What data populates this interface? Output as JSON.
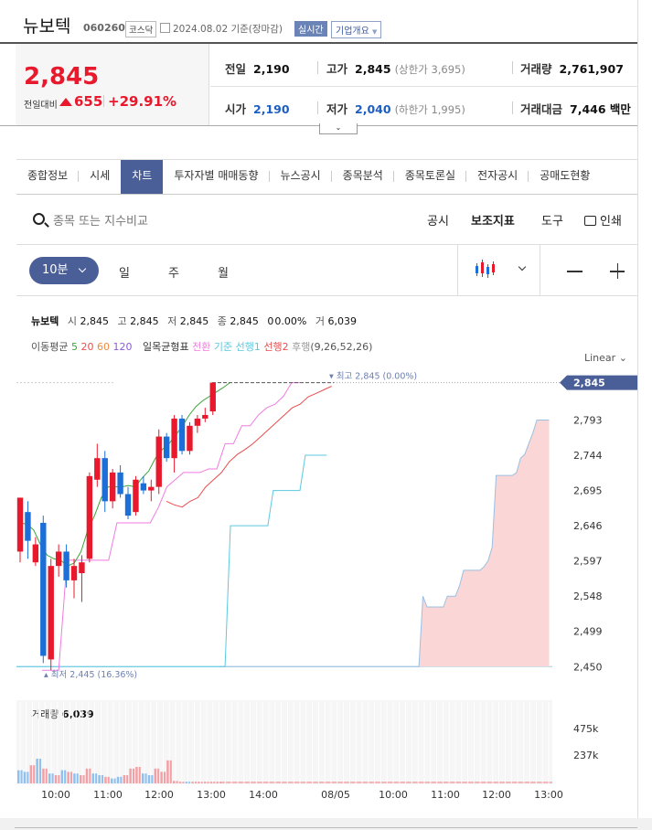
{
  "header": {
    "name": "뉴보텍",
    "code": "060260",
    "market": "코스닥",
    "date_text": "2024.08.02 기준(장마감)",
    "realtime": "실시간",
    "overview": "기업개요"
  },
  "price": {
    "current": "2,845",
    "compare_label": "전일대비",
    "change": "655",
    "change_pct": "+29.91%"
  },
  "stats": {
    "prev_label": "전일",
    "prev": "2,190",
    "high_label": "고가",
    "high": "2,845",
    "upper_limit": "(상한가 3,695)",
    "volume_label": "거래량",
    "volume": "2,761,907",
    "open_label": "시가",
    "open": "2,190",
    "low_label": "저가",
    "low": "2,040",
    "lower_limit": "(하한가 1,995)",
    "amount_label": "거래대금",
    "amount": "7,446 백만"
  },
  "tabs": [
    "종합정보",
    "시세",
    "차트",
    "투자자별 매매동향",
    "뉴스공시",
    "종목분석",
    "종목토론실",
    "전자공시",
    "공매도현황"
  ],
  "active_tab": "차트",
  "toolbar": {
    "search_placeholder": "종목 또는 지수비교",
    "disclosure": "공시",
    "indicator": "보조지표",
    "tools": "도구",
    "print": "인쇄"
  },
  "periods": {
    "selected": "10분",
    "day": "일",
    "week": "주",
    "month": "월"
  },
  "chart_info": {
    "name": "뉴보텍",
    "open_k": "시",
    "open": "2,845",
    "high_k": "고",
    "high": "2,845",
    "low_k": "저",
    "low": "2,845",
    "close_k": "종",
    "close": "2,845",
    "change": "0",
    "pct": "0.00%",
    "vol_k": "거",
    "vol": "6,039",
    "ma_label": "이동평균",
    "ma": [
      "5",
      "20",
      "60",
      "120"
    ],
    "ichimoku_label": "일목균형표",
    "ich": [
      "전환",
      "기준",
      "선행1",
      "선행2",
      "후행"
    ],
    "ich_params": "(9,26,52,26)"
  },
  "scale_mode": "Linear",
  "volume_label": "거래량",
  "volume_value": "6,039",
  "colors": {
    "up": "#e8192c",
    "down": "#1d6fd8",
    "accent": "#4a5f98",
    "ma5": "#3aa53a",
    "ma20": "#e84d4d",
    "ma60": "#f08a3c",
    "ma120": "#8e5bd6",
    "conv": "#f07be0",
    "base": "#5cc8e0",
    "span1": "#ff9a9a",
    "span2": "#e84d4d"
  },
  "chart_data": {
    "type": "candlestick",
    "ylim": [
      2430,
      2875
    ],
    "y_ticks": [
      2450,
      2499,
      2548,
      2597,
      2646,
      2695,
      2744,
      2793
    ],
    "y_tick_labels": [
      "2,450",
      "2,499",
      "2,548",
      "2,597",
      "2,646",
      "2,695",
      "2,744",
      "2,793"
    ],
    "last_price_label": "2,845",
    "max_marker": "최고 2,845 (0.00%)",
    "max_value": 2845,
    "min_marker": "최저 2,445 (16.36%)",
    "min_value": 2445,
    "x_labels": [
      "10:00",
      "11:00",
      "12:00",
      "13:00",
      "14:00",
      "08/05",
      "10:00",
      "11:00",
      "12:00",
      "13:00"
    ],
    "candles": [
      {
        "o": 2610,
        "h": 2685,
        "l": 2595,
        "c": 2685
      },
      {
        "o": 2665,
        "h": 2680,
        "l": 2600,
        "c": 2625
      },
      {
        "o": 2595,
        "h": 2630,
        "l": 2590,
        "c": 2620
      },
      {
        "o": 2650,
        "h": 2660,
        "l": 2455,
        "c": 2465
      },
      {
        "o": 2460,
        "h": 2600,
        "l": 2445,
        "c": 2590
      },
      {
        "o": 2590,
        "h": 2620,
        "l": 2575,
        "c": 2610
      },
      {
        "o": 2610,
        "h": 2620,
        "l": 2560,
        "c": 2570
      },
      {
        "o": 2570,
        "h": 2600,
        "l": 2545,
        "c": 2590
      },
      {
        "o": 2580,
        "h": 2605,
        "l": 2540,
        "c": 2595
      },
      {
        "o": 2600,
        "h": 2720,
        "l": 2595,
        "c": 2715
      },
      {
        "o": 2710,
        "h": 2760,
        "l": 2700,
        "c": 2740
      },
      {
        "o": 2740,
        "h": 2750,
        "l": 2665,
        "c": 2680
      },
      {
        "o": 2680,
        "h": 2725,
        "l": 2670,
        "c": 2720
      },
      {
        "o": 2720,
        "h": 2730,
        "l": 2685,
        "c": 2690
      },
      {
        "o": 2690,
        "h": 2700,
        "l": 2655,
        "c": 2660
      },
      {
        "o": 2665,
        "h": 2715,
        "l": 2660,
        "c": 2710
      },
      {
        "o": 2705,
        "h": 2715,
        "l": 2690,
        "c": 2695
      },
      {
        "o": 2695,
        "h": 2710,
        "l": 2680,
        "c": 2700
      },
      {
        "o": 2700,
        "h": 2780,
        "l": 2690,
        "c": 2770
      },
      {
        "o": 2770,
        "h": 2775,
        "l": 2735,
        "c": 2740
      },
      {
        "o": 2740,
        "h": 2800,
        "l": 2720,
        "c": 2795
      },
      {
        "o": 2795,
        "h": 2800,
        "l": 2745,
        "c": 2750
      },
      {
        "o": 2750,
        "h": 2790,
        "l": 2745,
        "c": 2785
      },
      {
        "o": 2785,
        "h": 2800,
        "l": 2775,
        "c": 2795
      },
      {
        "o": 2795,
        "h": 2810,
        "l": 2790,
        "c": 2800
      },
      {
        "o": 2805,
        "h": 2845,
        "l": 2800,
        "c": 2845
      }
    ],
    "ma5": [
      2650,
      2648,
      2640,
      2620,
      2605,
      2600,
      2598,
      2590,
      2594,
      2610,
      2640,
      2660,
      2685,
      2700,
      2700,
      2700,
      2702,
      2700,
      2712,
      2722,
      2740,
      2752,
      2760,
      2772,
      2785,
      2800,
      2812,
      2820,
      2826,
      2832,
      2838,
      2845
    ],
    "conv": [
      2445,
      2445,
      2445,
      2598,
      2598,
      2598,
      2598,
      2598,
      2598,
      2650,
      2650,
      2650,
      2650,
      2650,
      2672,
      2700,
      2710,
      2720,
      2720,
      2720,
      2725,
      2725,
      2760,
      2760,
      2785,
      2785,
      2800,
      2810,
      2815,
      2826,
      2845,
      2845
    ],
    "base_line": [
      2450,
      2450,
      2450,
      2450,
      2450,
      2450,
      2450,
      2450,
      2450,
      2450,
      2450,
      2450,
      2450,
      2450,
      2450,
      2450,
      2450,
      2450,
      2450,
      2450,
      2450,
      2450,
      2450,
      2450,
      2450,
      2450,
      2450,
      2450,
      2450,
      2450,
      2450,
      2450,
      2450,
      2450,
      2450,
      2450,
      2450,
      2450,
      2450,
      2450,
      2646,
      2646,
      2646,
      2646,
      2646,
      2646,
      2646,
      2646,
      2695,
      2695,
      2695,
      2695,
      2695,
      2695,
      2744,
      2744,
      2744,
      2744,
      2744
    ],
    "span2": [
      2680,
      2675,
      2672,
      2680,
      2685,
      2700,
      2710,
      2720,
      2735,
      2745,
      2752,
      2760,
      2770,
      2780,
      2790,
      2800,
      2810,
      2815,
      2825,
      2830,
      2835,
      2840
    ],
    "cloud": [
      2450,
      2450,
      2450,
      2450,
      2450,
      2450,
      2450,
      2450,
      2450,
      2450,
      2450,
      2450,
      2450,
      2450,
      2450,
      2450,
      2450,
      2450,
      2450,
      2450,
      2450,
      2450,
      2450,
      2450,
      2450,
      2450,
      2450,
      2450,
      2450,
      2450,
      2450,
      2450,
      2450,
      2450,
      2450,
      2450,
      2450,
      2450,
      2450,
      2450,
      2450,
      2450,
      2450,
      2450,
      2450,
      2450,
      2450,
      2450,
      2450,
      2450,
      2548,
      2533,
      2533,
      2533,
      2533,
      2533,
      2548,
      2548,
      2548,
      2563,
      2584,
      2584,
      2584,
      2584,
      2584,
      2589,
      2597,
      2616,
      2716,
      2716,
      2716,
      2716,
      2716,
      2720,
      2740,
      2745,
      2760,
      2775,
      2793,
      2793,
      2793,
      2793
    ],
    "vol_ticks": [
      "475k",
      "237k"
    ],
    "volumes": [
      {
        "v": 0.16,
        "up": false
      },
      {
        "v": 0.14,
        "up": false
      },
      {
        "v": 0.22,
        "up": true
      },
      {
        "v": 0.3,
        "up": false
      },
      {
        "v": 0.18,
        "up": true
      },
      {
        "v": 0.12,
        "up": false
      },
      {
        "v": 0.1,
        "up": true
      },
      {
        "v": 0.16,
        "up": false
      },
      {
        "v": 0.14,
        "up": true
      },
      {
        "v": 0.12,
        "up": false
      },
      {
        "v": 0.1,
        "up": true
      },
      {
        "v": 0.18,
        "up": true
      },
      {
        "v": 0.12,
        "up": false
      },
      {
        "v": 0.1,
        "up": false
      },
      {
        "v": 0.08,
        "up": true
      },
      {
        "v": 0.06,
        "up": false
      },
      {
        "v": 0.08,
        "up": false
      },
      {
        "v": 0.1,
        "up": true
      },
      {
        "v": 0.18,
        "up": true
      },
      {
        "v": 0.2,
        "up": true
      },
      {
        "v": 0.12,
        "up": false
      },
      {
        "v": 0.1,
        "up": false
      },
      {
        "v": 0.18,
        "up": true
      },
      {
        "v": 0.14,
        "up": true
      },
      {
        "v": 0.28,
        "up": true
      },
      {
        "v": 0.03,
        "up": true
      },
      {
        "v": 0.02,
        "up": true
      },
      {
        "v": 0.02,
        "up": false
      },
      {
        "v": 0.02,
        "up": true
      },
      {
        "v": 0.02,
        "up": true
      },
      {
        "v": 0.02,
        "up": true
      },
      {
        "v": 0.02,
        "up": true
      },
      {
        "v": 0.02,
        "up": true
      }
    ]
  }
}
